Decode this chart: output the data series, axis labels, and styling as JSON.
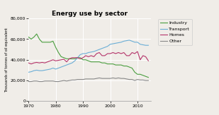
{
  "title": "Energy use by sector",
  "ylabel": "Thousands of tonnes of oil equivalent",
  "ylim": [
    0,
    80000
  ],
  "yticks": [
    0,
    20000,
    40000,
    60000,
    80000
  ],
  "ytick_labels": [
    "0",
    "20,000",
    "40,000",
    "60,000",
    "80,000"
  ],
  "xlim": [
    1970,
    2015
  ],
  "xticks": [
    1970,
    1980,
    1990,
    2000,
    2010
  ],
  "background_color": "#f0ede8",
  "plot_bg_color": "#f0ede8",
  "grid_color": "#ffffff",
  "series": {
    "Industry": {
      "color": "#4a9e3f",
      "data": [
        [
          1970,
          62000
        ],
        [
          1971,
          60000
        ],
        [
          1972,
          62000
        ],
        [
          1973,
          65000
        ],
        [
          1974,
          60000
        ],
        [
          1975,
          57000
        ],
        [
          1976,
          57000
        ],
        [
          1977,
          57000
        ],
        [
          1978,
          57000
        ],
        [
          1979,
          58000
        ],
        [
          1980,
          52000
        ],
        [
          1981,
          47000
        ],
        [
          1982,
          43000
        ],
        [
          1983,
          42000
        ],
        [
          1984,
          41000
        ],
        [
          1985,
          41000
        ],
        [
          1986,
          41000
        ],
        [
          1987,
          41000
        ],
        [
          1988,
          42000
        ],
        [
          1989,
          42000
        ],
        [
          1990,
          40000
        ],
        [
          1991,
          40000
        ],
        [
          1992,
          39000
        ],
        [
          1993,
          38000
        ],
        [
          1994,
          38000
        ],
        [
          1995,
          38000
        ],
        [
          1996,
          38000
        ],
        [
          1997,
          37000
        ],
        [
          1998,
          37000
        ],
        [
          1999,
          36000
        ],
        [
          2000,
          36000
        ],
        [
          2001,
          36000
        ],
        [
          2002,
          35000
        ],
        [
          2003,
          35000
        ],
        [
          2004,
          35000
        ],
        [
          2005,
          34000
        ],
        [
          2006,
          34000
        ],
        [
          2007,
          33000
        ],
        [
          2008,
          32000
        ],
        [
          2009,
          28000
        ],
        [
          2010,
          26000
        ],
        [
          2011,
          26000
        ],
        [
          2012,
          25000
        ],
        [
          2013,
          24000
        ],
        [
          2014,
          23000
        ]
      ]
    },
    "Transport": {
      "color": "#6baed6",
      "data": [
        [
          1970,
          28000
        ],
        [
          1971,
          28500
        ],
        [
          1972,
          29500
        ],
        [
          1973,
          30000
        ],
        [
          1974,
          29500
        ],
        [
          1975,
          29500
        ],
        [
          1976,
          30000
        ],
        [
          1977,
          30500
        ],
        [
          1978,
          31000
        ],
        [
          1979,
          32000
        ],
        [
          1980,
          31000
        ],
        [
          1981,
          32000
        ],
        [
          1982,
          33000
        ],
        [
          1983,
          34000
        ],
        [
          1984,
          35000
        ],
        [
          1985,
          36000
        ],
        [
          1986,
          37000
        ],
        [
          1987,
          39000
        ],
        [
          1988,
          42000
        ],
        [
          1989,
          45000
        ],
        [
          1990,
          46000
        ],
        [
          1991,
          46000
        ],
        [
          1992,
          47000
        ],
        [
          1993,
          47500
        ],
        [
          1994,
          48000
        ],
        [
          1995,
          49000
        ],
        [
          1996,
          50000
        ],
        [
          1997,
          51000
        ],
        [
          1998,
          52000
        ],
        [
          1999,
          53000
        ],
        [
          2000,
          55000
        ],
        [
          2001,
          55500
        ],
        [
          2002,
          56000
        ],
        [
          2003,
          56500
        ],
        [
          2004,
          57000
        ],
        [
          2005,
          58000
        ],
        [
          2006,
          58500
        ],
        [
          2007,
          59000
        ],
        [
          2008,
          58000
        ],
        [
          2009,
          57000
        ],
        [
          2010,
          57000
        ],
        [
          2011,
          55000
        ],
        [
          2012,
          54500
        ],
        [
          2013,
          54000
        ],
        [
          2014,
          54000
        ]
      ]
    },
    "Homes": {
      "color": "#b5346a",
      "data": [
        [
          1970,
          37000
        ],
        [
          1971,
          36000
        ],
        [
          1972,
          37000
        ],
        [
          1973,
          37500
        ],
        [
          1974,
          37000
        ],
        [
          1975,
          37500
        ],
        [
          1976,
          37000
        ],
        [
          1977,
          38000
        ],
        [
          1978,
          39000
        ],
        [
          1979,
          40000
        ],
        [
          1980,
          39000
        ],
        [
          1981,
          39500
        ],
        [
          1982,
          40000
        ],
        [
          1983,
          40500
        ],
        [
          1984,
          38000
        ],
        [
          1985,
          41000
        ],
        [
          1986,
          42000
        ],
        [
          1987,
          42000
        ],
        [
          1988,
          42000
        ],
        [
          1989,
          41000
        ],
        [
          1990,
          42000
        ],
        [
          1991,
          44000
        ],
        [
          1992,
          43000
        ],
        [
          1993,
          44000
        ],
        [
          1994,
          43000
        ],
        [
          1995,
          46000
        ],
        [
          1996,
          47000
        ],
        [
          1997,
          44000
        ],
        [
          1998,
          44000
        ],
        [
          1999,
          46000
        ],
        [
          2000,
          46000
        ],
        [
          2001,
          47000
        ],
        [
          2002,
          46000
        ],
        [
          2003,
          47000
        ],
        [
          2004,
          46000
        ],
        [
          2005,
          47000
        ],
        [
          2006,
          44000
        ],
        [
          2007,
          44000
        ],
        [
          2008,
          47000
        ],
        [
          2009,
          46000
        ],
        [
          2010,
          48000
        ],
        [
          2011,
          40000
        ],
        [
          2012,
          44000
        ],
        [
          2013,
          43000
        ],
        [
          2014,
          39000
        ]
      ]
    },
    "Other": {
      "color": "#888888",
      "data": [
        [
          1970,
          19000
        ],
        [
          1971,
          19000
        ],
        [
          1972,
          19500
        ],
        [
          1973,
          19500
        ],
        [
          1974,
          19000
        ],
        [
          1975,
          19000
        ],
        [
          1976,
          19500
        ],
        [
          1977,
          19500
        ],
        [
          1978,
          19500
        ],
        [
          1979,
          19500
        ],
        [
          1980,
          19000
        ],
        [
          1981,
          19000
        ],
        [
          1982,
          19500
        ],
        [
          1983,
          20000
        ],
        [
          1984,
          19500
        ],
        [
          1985,
          20000
        ],
        [
          1986,
          20500
        ],
        [
          1987,
          20500
        ],
        [
          1988,
          21000
        ],
        [
          1989,
          21000
        ],
        [
          1990,
          21000
        ],
        [
          1991,
          21500
        ],
        [
          1992,
          21500
        ],
        [
          1993,
          21500
        ],
        [
          1994,
          21500
        ],
        [
          1995,
          22000
        ],
        [
          1996,
          22500
        ],
        [
          1997,
          22000
        ],
        [
          1998,
          22000
        ],
        [
          1999,
          22000
        ],
        [
          2000,
          22000
        ],
        [
          2001,
          22500
        ],
        [
          2002,
          22000
        ],
        [
          2003,
          22500
        ],
        [
          2004,
          22000
        ],
        [
          2005,
          22000
        ],
        [
          2006,
          21500
        ],
        [
          2007,
          21000
        ],
        [
          2008,
          21000
        ],
        [
          2009,
          20000
        ],
        [
          2010,
          21000
        ],
        [
          2011,
          20500
        ],
        [
          2012,
          20500
        ],
        [
          2013,
          20000
        ],
        [
          2014,
          20000
        ]
      ]
    }
  }
}
